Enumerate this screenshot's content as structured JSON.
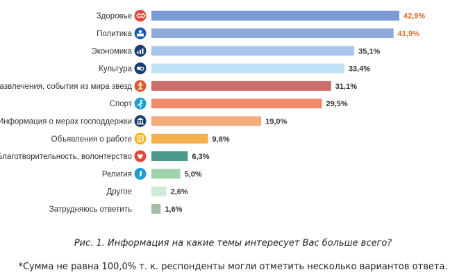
{
  "chart_data": {
    "type": "bar",
    "orientation": "horizontal",
    "categories": [
      "Здоровье",
      "Политика",
      "Экономика",
      "Культура",
      "Развлечения, события из мира звезд",
      "Спорт",
      "Информация о мерах господдержки",
      "Объявления о работе",
      "Благотворительность, волонтерство",
      "Религия",
      "Другое",
      "Затрудняюсь ответить"
    ],
    "values": [
      42.9,
      41.9,
      35.1,
      33.4,
      31.1,
      29.5,
      19.0,
      9.8,
      6.3,
      5.0,
      2.6,
      1.6
    ],
    "value_labels": [
      "42,9%",
      "41,9%",
      "35,1%",
      "33,4%",
      "31,1%",
      "29,5%",
      "19,0%",
      "9,8%",
      "6,3%",
      "5,0%",
      "2,6%",
      "1,6%"
    ],
    "bar_colors": [
      "#7b9ad6",
      "#8fa9dd",
      "#a9c6ec",
      "#bfe1f6",
      "#cc6e6b",
      "#f28b6c",
      "#f7ac7b",
      "#f5b04e",
      "#4d9a8c",
      "#9fd3ac",
      "#cdebd6",
      "#a6bba8"
    ],
    "label_colors": [
      "#e56a2c",
      "#e56a2c",
      "#333333",
      "#333333",
      "#333333",
      "#333333",
      "#333333",
      "#333333",
      "#333333",
      "#333333",
      "#333333",
      "#333333"
    ],
    "icons": [
      "handshake-icon",
      "politics-icon",
      "economy-icon",
      "culture-icon",
      "celebrity-icon",
      "sport-icon",
      "government-support-icon",
      "job-ad-icon",
      "charity-icon",
      "religion-icon",
      "",
      ""
    ],
    "icon_colors": [
      "#e3473a",
      "#1e5aa8",
      "#1c3f73",
      "#1c3f73",
      "#e2562c",
      "#1f9bd6",
      "#1c3f73",
      "#f4b521",
      "#e3473a",
      "#1f9bd6",
      "",
      ""
    ],
    "xlim": [
      0,
      43.5
    ],
    "grid": false,
    "legend": "none"
  },
  "captions": {
    "figure": "Рис. 1. Информация на какие темы интересует Вас больше всего?",
    "note": "*Сумма не равна 100,0% т. к. респонденты могли отметить несколько вариантов ответа."
  }
}
